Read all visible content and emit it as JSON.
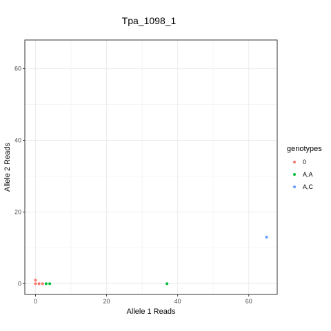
{
  "chart_data": {
    "type": "scatter",
    "title": "Tpa_1098_1",
    "xlabel": "Allele 1 Reads",
    "ylabel": "Allele 2 Reads",
    "xlim": [
      -3,
      68
    ],
    "ylim": [
      -3,
      68
    ],
    "x_ticks": [
      0,
      20,
      40,
      60
    ],
    "y_ticks": [
      0,
      20,
      40,
      60
    ],
    "grid": true,
    "legend": {
      "title": "genotypes",
      "position": "right"
    },
    "series": [
      {
        "name": "0",
        "color": "#f8766d",
        "points": [
          {
            "x": 0,
            "y": 1
          },
          {
            "x": 0,
            "y": 0
          },
          {
            "x": 1,
            "y": 0
          },
          {
            "x": 2,
            "y": 0
          }
        ]
      },
      {
        "name": "A,A",
        "color": "#00ba38",
        "points": [
          {
            "x": 3,
            "y": 0
          },
          {
            "x": 4,
            "y": 0
          },
          {
            "x": 37,
            "y": 0
          }
        ]
      },
      {
        "name": "A,C",
        "color": "#619cff",
        "points": [
          {
            "x": 65,
            "y": 13
          }
        ]
      }
    ]
  }
}
